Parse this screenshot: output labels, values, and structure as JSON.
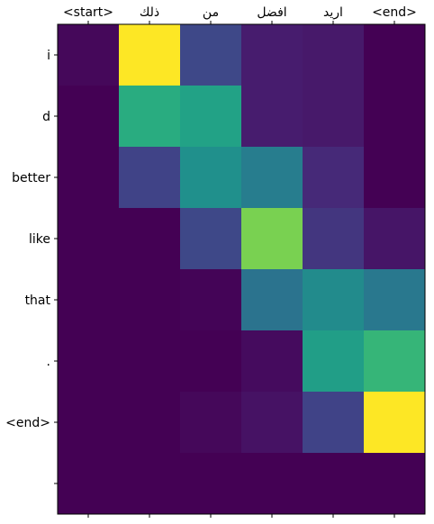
{
  "chart_data": {
    "type": "heatmap",
    "colormap": "viridis",
    "value_range": [
      0,
      1
    ],
    "x_tick_labels": [
      "<start>",
      "ذلك",
      "من",
      "افضل",
      "اريد",
      "<end>"
    ],
    "y_tick_labels": [
      "i",
      "d",
      "better",
      "like",
      "that",
      ".",
      "<end>",
      ""
    ],
    "xlabel": "",
    "ylabel": "",
    "title": "",
    "x_ticks_position": "top",
    "grid": false,
    "values": [
      [
        0.02,
        1.0,
        0.22,
        0.08,
        0.07,
        0.0
      ],
      [
        0.0,
        0.62,
        0.58,
        0.08,
        0.07,
        0.0
      ],
      [
        0.0,
        0.2,
        0.5,
        0.42,
        0.12,
        0.0
      ],
      [
        0.0,
        0.0,
        0.22,
        0.8,
        0.16,
        0.06
      ],
      [
        0.0,
        0.0,
        0.01,
        0.38,
        0.48,
        0.4
      ],
      [
        0.0,
        0.0,
        0.0,
        0.03,
        0.56,
        0.66
      ],
      [
        0.0,
        0.0,
        0.02,
        0.05,
        0.2,
        1.0
      ],
      [
        0.0,
        0.0,
        0.0,
        0.0,
        0.0,
        0.0
      ]
    ]
  }
}
